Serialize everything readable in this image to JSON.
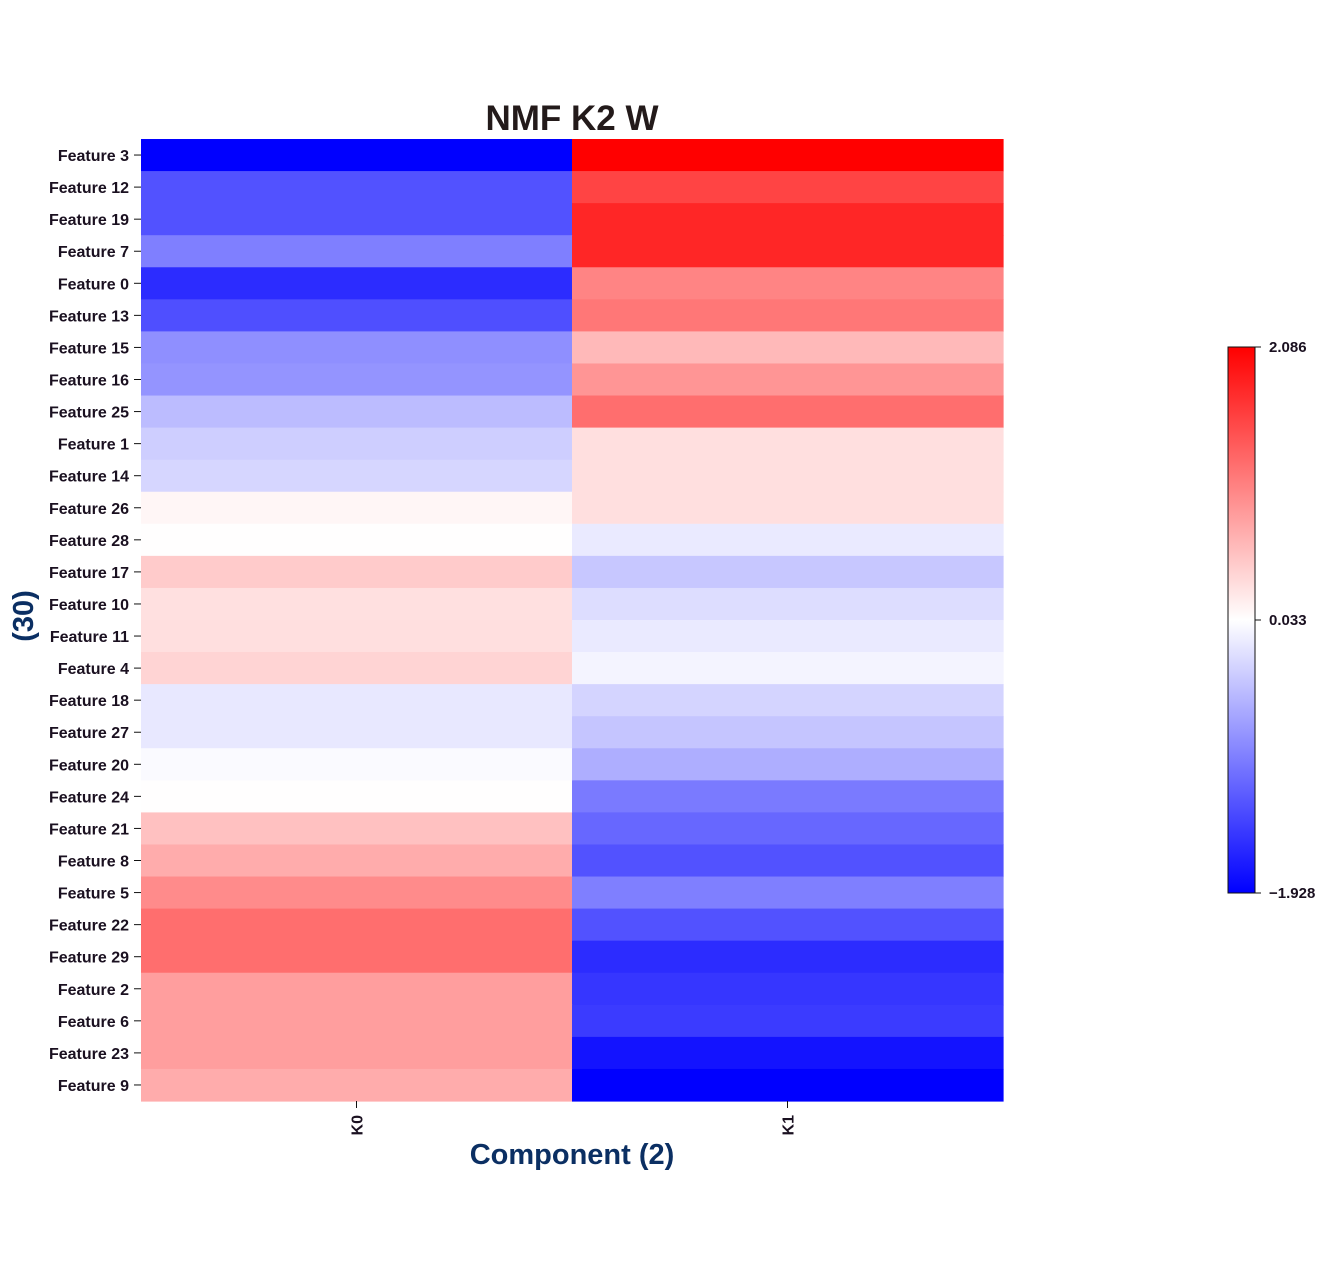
{
  "chart_data": {
    "type": "heatmap",
    "title": "NMF K2 W",
    "xlabel": "Component (2)",
    "ylabel": "(30)",
    "columns": [
      "K0",
      "K1"
    ],
    "rows": [
      "Feature 3",
      "Feature 12",
      "Feature 19",
      "Feature 7",
      "Feature 0",
      "Feature 13",
      "Feature 15",
      "Feature 16",
      "Feature 25",
      "Feature 1",
      "Feature 14",
      "Feature 26",
      "Feature 28",
      "Feature 17",
      "Feature 10",
      "Feature 11",
      "Feature 4",
      "Feature 18",
      "Feature 27",
      "Feature 20",
      "Feature 24",
      "Feature 21",
      "Feature 8",
      "Feature 5",
      "Feature 22",
      "Feature 29",
      "Feature 2",
      "Feature 6",
      "Feature 23",
      "Feature 9"
    ],
    "values": [
      [
        -1.928,
        2.086
      ],
      [
        -1.28,
        1.55
      ],
      [
        -1.28,
        1.79
      ],
      [
        -0.93,
        1.79
      ],
      [
        -1.58,
        1.05
      ],
      [
        -1.31,
        1.15
      ],
      [
        -0.8,
        0.63
      ],
      [
        -0.76,
        0.91
      ],
      [
        -0.45,
        1.22
      ],
      [
        -0.31,
        0.33
      ],
      [
        -0.24,
        0.33
      ],
      [
        0.15,
        0.33
      ],
      [
        0.09,
        -0.09
      ],
      [
        0.49,
        -0.36
      ],
      [
        0.32,
        -0.19
      ],
      [
        0.33,
        -0.09
      ],
      [
        0.42,
        -0.01
      ],
      [
        -0.1,
        -0.26
      ],
      [
        -0.1,
        -0.38
      ],
      [
        0.04,
        -0.56
      ],
      [
        0.09,
        -0.97
      ],
      [
        0.57,
        -1.12
      ],
      [
        0.73,
        -1.28
      ],
      [
        0.99,
        -0.93
      ],
      [
        1.22,
        -1.28
      ],
      [
        1.22,
        -1.58
      ],
      [
        0.84,
        -1.5
      ],
      [
        0.84,
        -1.46
      ],
      [
        0.84,
        -1.78
      ],
      [
        0.73,
        -1.928
      ]
    ],
    "vmin": -1.928,
    "vmax": 2.086,
    "colorbar_ticks": [
      "2.086",
      "0.033",
      "−1.928"
    ],
    "colormap": {
      "low": "#0000ff",
      "mid": "#ffffff",
      "high": "#ff0000"
    },
    "legend_position": "right"
  }
}
